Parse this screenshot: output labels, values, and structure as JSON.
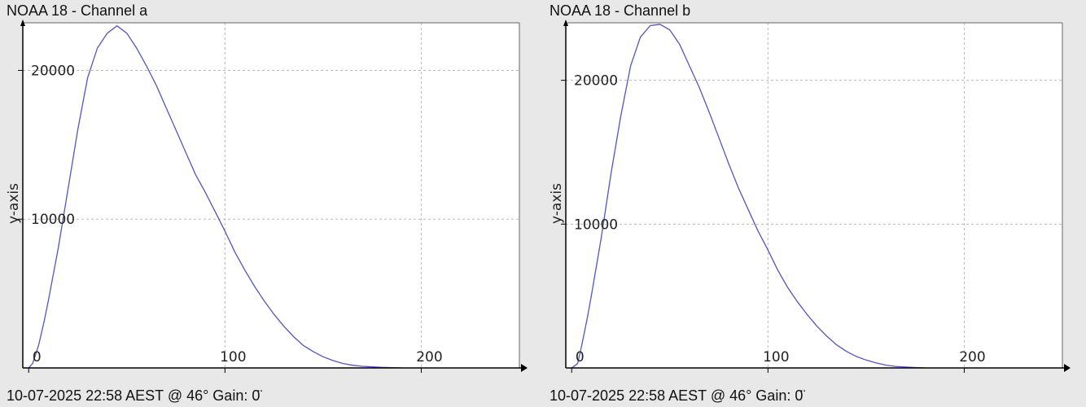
{
  "chart_data": [
    {
      "type": "line",
      "title": "NOAA 18 - Channel a",
      "footer": "10-07-2025 22:58 AEST @ 46° Gain: 0̈",
      "xlabel": "",
      "ylabel": "y-axis",
      "xlim": [
        -3,
        250
      ],
      "ylim": [
        0,
        23200
      ],
      "xticks": [
        0,
        100,
        200
      ],
      "yticks": [
        10000,
        20000
      ],
      "grid": true,
      "color": "#5555bb",
      "series": [
        {
          "x": [
            0,
            2,
            5,
            8,
            10,
            15,
            20,
            25,
            30,
            35,
            40,
            45,
            50,
            55,
            60,
            65,
            70,
            75,
            80,
            85,
            90,
            95,
            100,
            105,
            110,
            115,
            120,
            125,
            130,
            135,
            140,
            145,
            150,
            155,
            160,
            165,
            170,
            175,
            180,
            185,
            190
          ],
          "y": [
            0,
            300,
            1500,
            3200,
            4500,
            8000,
            12000,
            16000,
            19500,
            21500,
            22500,
            23000,
            22500,
            21500,
            20300,
            19000,
            17500,
            16000,
            14500,
            13000,
            11800,
            10500,
            9200,
            7800,
            6600,
            5500,
            4500,
            3600,
            2800,
            2100,
            1500,
            1100,
            750,
            500,
            300,
            180,
            110,
            70,
            40,
            20,
            0
          ]
        }
      ]
    },
    {
      "type": "line",
      "title": "NOAA 18 - Channel b",
      "footer": "10-07-2025 22:58 AEST @ 46° Gain: 0̈",
      "xlabel": "",
      "ylabel": "y-axis",
      "xlim": [
        -3,
        250
      ],
      "ylim": [
        0,
        24000
      ],
      "xticks": [
        0,
        100,
        200
      ],
      "yticks": [
        10000,
        20000
      ],
      "grid": true,
      "color": "#5555bb",
      "series": [
        {
          "x": [
            0,
            3,
            5,
            8,
            10,
            15,
            20,
            25,
            30,
            35,
            40,
            45,
            50,
            55,
            60,
            65,
            70,
            75,
            80,
            85,
            90,
            95,
            100,
            105,
            110,
            115,
            120,
            125,
            130,
            135,
            140,
            145,
            150,
            155,
            160,
            165,
            170,
            175,
            180
          ],
          "y": [
            0,
            300,
            1500,
            3500,
            5000,
            9000,
            13500,
            17500,
            21000,
            23000,
            23800,
            23900,
            23500,
            22500,
            21000,
            19500,
            17800,
            16000,
            14200,
            12500,
            11000,
            9500,
            8200,
            6800,
            5600,
            4600,
            3700,
            2900,
            2200,
            1600,
            1150,
            800,
            550,
            350,
            200,
            110,
            60,
            30,
            0
          ]
        }
      ]
    }
  ]
}
